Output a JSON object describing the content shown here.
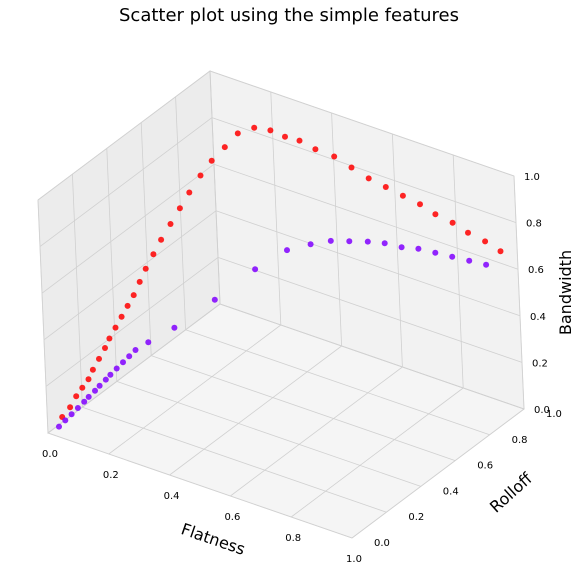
{
  "chart_data": {
    "type": "scatter",
    "projection": "3d",
    "title": "Scatter plot using the simple features",
    "xlabel": "Flatness",
    "ylabel": "Rolloff",
    "zlabel": "Bandwidth",
    "xlim": [
      0,
      1
    ],
    "ylim": [
      0,
      1
    ],
    "zlim": [
      0,
      1
    ],
    "xticks": [
      "0.0",
      "0.2",
      "0.4",
      "0.6",
      "0.8",
      "1.0"
    ],
    "yticks": [
      "0.0",
      "0.2",
      "0.4",
      "0.6",
      "0.8",
      "1.0"
    ],
    "zticks": [
      "0.0",
      "0.2",
      "0.4",
      "0.6",
      "0.8",
      "1.0"
    ],
    "grid": true,
    "legend": null,
    "colors": {
      "series_a": "#ff0000",
      "series_b": "#8000ff"
    },
    "series": [
      {
        "color": "#ff0000",
        "points": [
          [
            0.02,
            0.05,
            0.05
          ],
          [
            0.03,
            0.08,
            0.08
          ],
          [
            0.04,
            0.1,
            0.12
          ],
          [
            0.05,
            0.12,
            0.15
          ],
          [
            0.06,
            0.14,
            0.18
          ],
          [
            0.07,
            0.15,
            0.22
          ],
          [
            0.08,
            0.17,
            0.26
          ],
          [
            0.09,
            0.19,
            0.3
          ],
          [
            0.1,
            0.2,
            0.34
          ],
          [
            0.11,
            0.22,
            0.38
          ],
          [
            0.12,
            0.24,
            0.42
          ],
          [
            0.13,
            0.26,
            0.46
          ],
          [
            0.14,
            0.28,
            0.5
          ],
          [
            0.15,
            0.3,
            0.55
          ],
          [
            0.16,
            0.32,
            0.6
          ],
          [
            0.17,
            0.35,
            0.65
          ],
          [
            0.18,
            0.38,
            0.7
          ],
          [
            0.19,
            0.42,
            0.75
          ],
          [
            0.2,
            0.46,
            0.8
          ],
          [
            0.21,
            0.5,
            0.85
          ],
          [
            0.22,
            0.55,
            0.9
          ],
          [
            0.23,
            0.6,
            0.94
          ],
          [
            0.24,
            0.66,
            0.97
          ],
          [
            0.25,
            0.72,
            1.0
          ],
          [
            0.27,
            0.78,
            1.0
          ],
          [
            0.3,
            0.82,
            0.98
          ],
          [
            0.33,
            0.85,
            0.95
          ],
          [
            0.36,
            0.88,
            0.93
          ],
          [
            0.4,
            0.9,
            0.9
          ],
          [
            0.45,
            0.92,
            0.88
          ],
          [
            0.5,
            0.93,
            0.85
          ],
          [
            0.55,
            0.94,
            0.82
          ],
          [
            0.6,
            0.95,
            0.8
          ],
          [
            0.65,
            0.96,
            0.78
          ],
          [
            0.7,
            0.97,
            0.76
          ],
          [
            0.75,
            0.97,
            0.74
          ],
          [
            0.8,
            0.98,
            0.72
          ],
          [
            0.85,
            0.98,
            0.7
          ],
          [
            0.9,
            0.99,
            0.68
          ],
          [
            0.95,
            0.99,
            0.66
          ]
        ]
      },
      {
        "color": "#8000ff",
        "points": [
          [
            0.02,
            0.03,
            0.02
          ],
          [
            0.03,
            0.05,
            0.04
          ],
          [
            0.04,
            0.07,
            0.06
          ],
          [
            0.05,
            0.09,
            0.08
          ],
          [
            0.06,
            0.11,
            0.1
          ],
          [
            0.07,
            0.12,
            0.12
          ],
          [
            0.08,
            0.14,
            0.14
          ],
          [
            0.09,
            0.15,
            0.16
          ],
          [
            0.1,
            0.17,
            0.18
          ],
          [
            0.11,
            0.18,
            0.2
          ],
          [
            0.12,
            0.2,
            0.22
          ],
          [
            0.13,
            0.22,
            0.24
          ],
          [
            0.14,
            0.24,
            0.26
          ],
          [
            0.15,
            0.26,
            0.28
          ],
          [
            0.17,
            0.3,
            0.3
          ],
          [
            0.2,
            0.4,
            0.32
          ],
          [
            0.25,
            0.55,
            0.38
          ],
          [
            0.3,
            0.7,
            0.45
          ],
          [
            0.35,
            0.8,
            0.5
          ],
          [
            0.4,
            0.85,
            0.52
          ],
          [
            0.45,
            0.88,
            0.54
          ],
          [
            0.5,
            0.9,
            0.55
          ],
          [
            0.55,
            0.92,
            0.56
          ],
          [
            0.6,
            0.93,
            0.57
          ],
          [
            0.65,
            0.94,
            0.57
          ],
          [
            0.7,
            0.95,
            0.58
          ],
          [
            0.75,
            0.96,
            0.58
          ],
          [
            0.8,
            0.97,
            0.58
          ],
          [
            0.85,
            0.98,
            0.58
          ],
          [
            0.9,
            0.99,
            0.58
          ]
        ]
      }
    ]
  }
}
